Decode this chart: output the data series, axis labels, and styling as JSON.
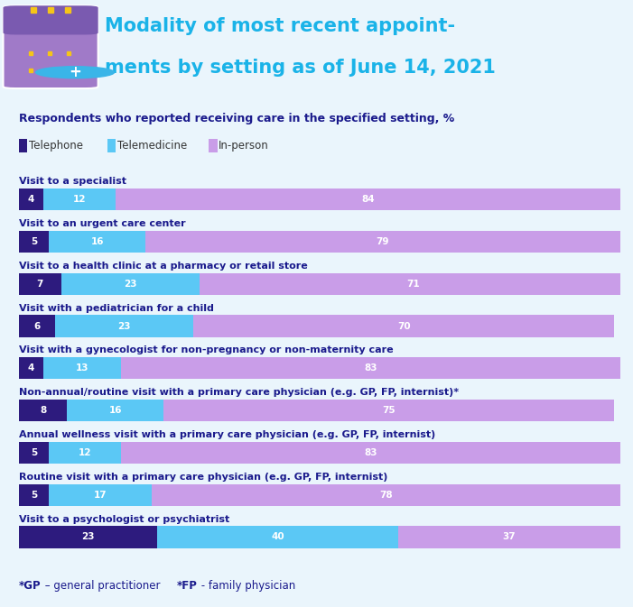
{
  "title_line1": "Modality of most recent appoint-",
  "title_line2": "ments by setting as of June 14, 2021",
  "subtitle": "Respondents who reported receiving care in the specified setting, %",
  "legend_labels": [
    "Telephone",
    "Telemedicine",
    "In-person"
  ],
  "legend_colors": [
    "#2d1b7e",
    "#5bc8f5",
    "#c99de8"
  ],
  "categories": [
    "Visit to a specialist",
    "Visit to an urgent care center",
    "Visit to a health clinic at a pharmacy or retail store",
    "Visit with a pediatrician for a child",
    "Visit with a gynecologist for non-pregnancy or non-maternity care",
    "Non-annual/routine visit with a primary care physician (e.g. GP, FP, internist)*",
    "Annual wellness visit with a primary care physician (e.g. GP, FP, internist)",
    "Routine visit with a primary care physician (e.g. GP, FP, internist)",
    "Visit to a psychologist or psychiatrist"
  ],
  "telephone": [
    4,
    5,
    7,
    6,
    4,
    8,
    5,
    5,
    23
  ],
  "telemedicine": [
    12,
    16,
    23,
    23,
    13,
    16,
    12,
    17,
    40
  ],
  "inperson": [
    84,
    79,
    71,
    70,
    83,
    75,
    83,
    78,
    37
  ],
  "color_telephone": "#2d1b7e",
  "color_telemedicine": "#5bc8f5",
  "color_inperson": "#c99de8",
  "background_color": "#eaf5fc",
  "header_background": "#cde8f5",
  "title_color": "#1ab3e8",
  "subtitle_color": "#1a1a8c",
  "category_color": "#1a1a8c",
  "bar_text_color": "#ffffff",
  "footnote_color": "#1a1a8c",
  "figwidth": 7.01,
  "figheight": 6.73,
  "dpi": 100
}
